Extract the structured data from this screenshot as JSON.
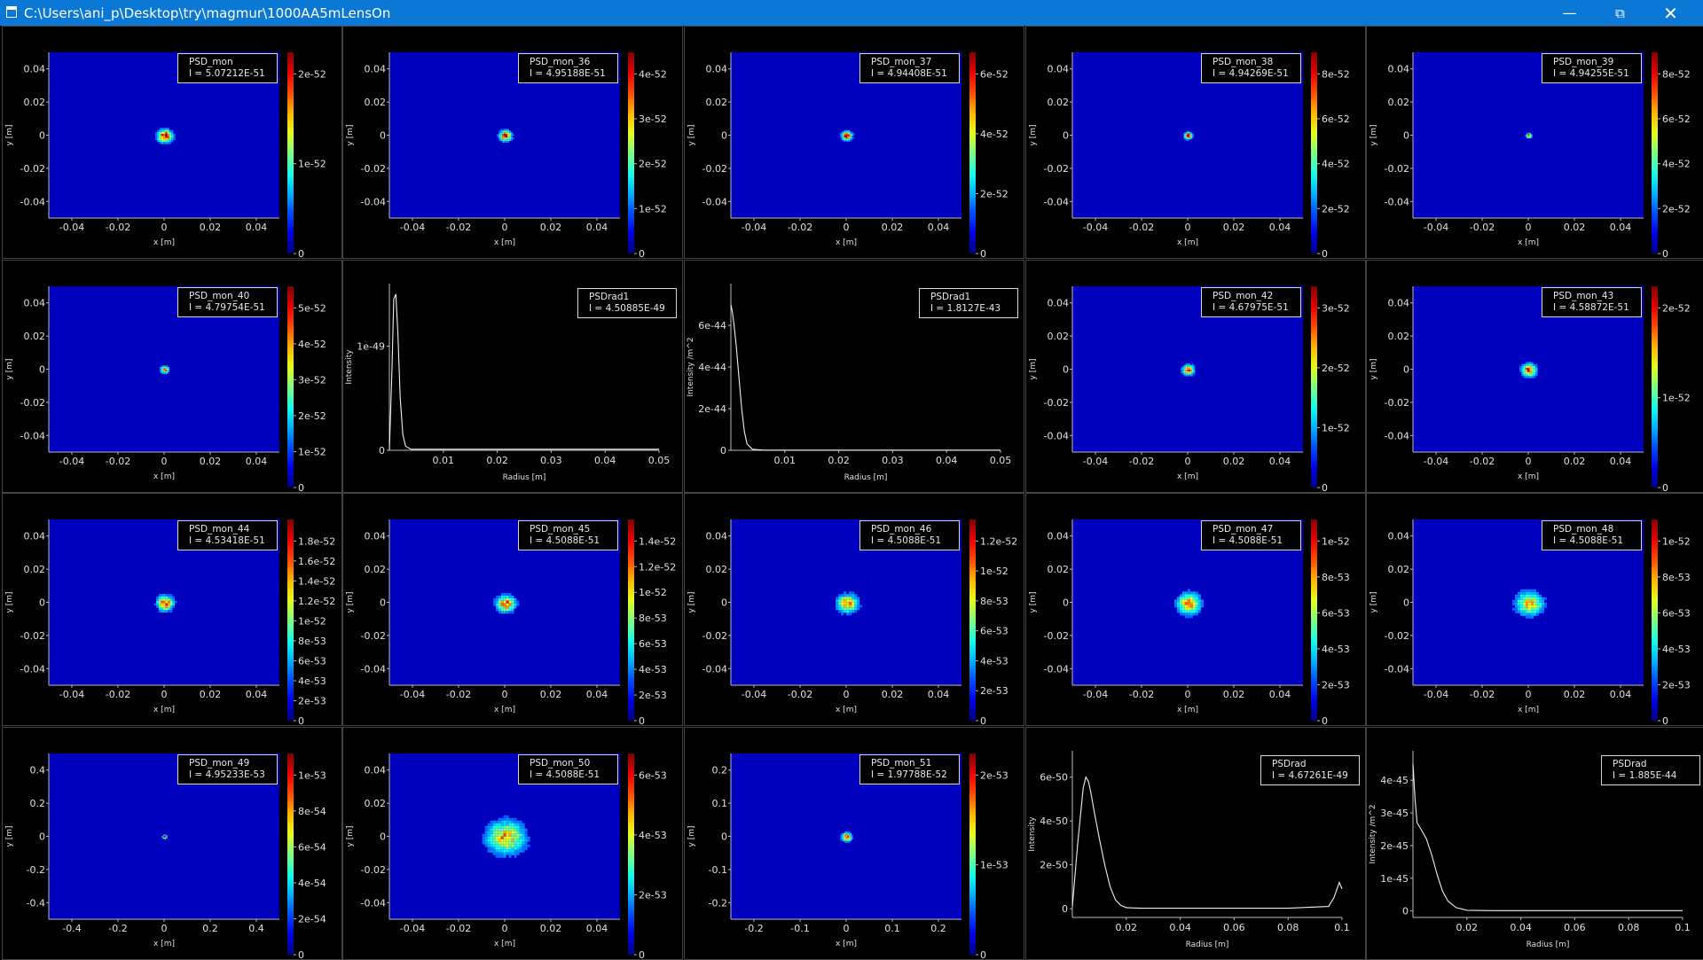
{
  "window": {
    "title": "C:\\Users\\ani_p\\Desktop\\try\\magmur\\1000AA5mLensOn",
    "minimize_icon": "minimize-icon",
    "maximize_icon": "restore-icon",
    "close_icon": "close-icon"
  },
  "panels": [
    {
      "type": "heatmap",
      "name": "PSD_mon",
      "intensity": "I = 5.07212E-51",
      "xlabel": "x [m]",
      "ylabel": "y [m]",
      "xticks": [
        "-0.04",
        "-0.02",
        "0",
        "0.02",
        "0.04"
      ],
      "yticks": [
        "0.04",
        "0.02",
        "0",
        "-0.02",
        "-0.04"
      ],
      "cbticks": [
        "0",
        "1e-52",
        "2e-52"
      ],
      "spot": {
        "x": 0,
        "y": 0,
        "r": 0.0035
      },
      "peak": 0.95
    },
    {
      "type": "heatmap",
      "name": "PSD_mon_36",
      "intensity": "I = 4.95188E-51",
      "xlabel": "x [m]",
      "ylabel": "y [m]",
      "xticks": [
        "-0.04",
        "-0.02",
        "0",
        "0.02",
        "0.04"
      ],
      "yticks": [
        "0.04",
        "0.02",
        "0",
        "-0.02",
        "-0.04"
      ],
      "cbticks": [
        "0",
        "1e-52",
        "2e-52",
        "3e-52",
        "4e-52"
      ],
      "spot": {
        "x": 0,
        "y": 0,
        "r": 0.003
      },
      "peak": 0.85
    },
    {
      "type": "heatmap",
      "name": "PSD_mon_37",
      "intensity": "I = 4.94408E-51",
      "xlabel": "x [m]",
      "ylabel": "y [m]",
      "xticks": [
        "-0.04",
        "-0.02",
        "0",
        "0.02",
        "0.04"
      ],
      "yticks": [
        "0.04",
        "0.02",
        "0",
        "-0.02",
        "-0.04"
      ],
      "cbticks": [
        "0",
        "2e-52",
        "4e-52",
        "6e-52"
      ],
      "spot": {
        "x": 0,
        "y": 0,
        "r": 0.0025
      },
      "peak": 0.92
    },
    {
      "type": "heatmap",
      "name": "PSD_mon_38",
      "intensity": "I = 4.94269E-51",
      "xlabel": "x [m]",
      "ylabel": "y [m]",
      "xticks": [
        "-0.04",
        "-0.02",
        "0",
        "0.02",
        "0.04"
      ],
      "yticks": [
        "0.04",
        "0.02",
        "0",
        "-0.02",
        "-0.04"
      ],
      "cbticks": [
        "0",
        "2e-52",
        "4e-52",
        "6e-52",
        "8e-52"
      ],
      "spot": {
        "x": 0,
        "y": 0,
        "r": 0.0018
      },
      "peak": 1.0
    },
    {
      "type": "heatmap",
      "name": "PSD_mon_39",
      "intensity": "I = 4.94255E-51",
      "xlabel": "x [m]",
      "ylabel": "y [m]",
      "xticks": [
        "-0.04",
        "-0.02",
        "0",
        "0.02",
        "0.04"
      ],
      "yticks": [
        "0.04",
        "0.02",
        "0",
        "-0.02",
        "-0.04"
      ],
      "cbticks": [
        "0",
        "2e-52",
        "4e-52",
        "6e-52",
        "8e-52"
      ],
      "spot": {
        "x": 0,
        "y": 0,
        "r": 0.0012
      },
      "peak": 1.0
    },
    {
      "type": "heatmap",
      "name": "PSD_mon_40",
      "intensity": "I = 4.79754E-51",
      "xlabel": "x [m]",
      "ylabel": "y [m]",
      "xticks": [
        "-0.04",
        "-0.02",
        "0",
        "0.02",
        "0.04"
      ],
      "yticks": [
        "0.04",
        "0.02",
        "0",
        "-0.02",
        "-0.04"
      ],
      "cbticks": [
        "0",
        "1e-52",
        "2e-52",
        "3e-52",
        "4e-52",
        "5e-52"
      ],
      "spot": {
        "x": 0,
        "y": 0,
        "r": 0.002
      },
      "peak": 0.75
    },
    {
      "type": "line",
      "name": "PSDrad1",
      "intensity": "I = 4.50885E-49",
      "xlabel": "Radius [m]",
      "ylabel": "Intensity",
      "xticks": [
        "0.01",
        "0.02",
        "0.03",
        "0.04",
        "0.05"
      ],
      "yticks": [
        "0",
        "1e-49"
      ],
      "chart_data": {
        "type": "line",
        "xlim": [
          0,
          0.05
        ],
        "ylim": [
          0,
          1.6e-49
        ],
        "x": [
          0,
          0.0005,
          0.0008,
          0.0012,
          0.0016,
          0.002,
          0.0025,
          0.003,
          0.004,
          0.006,
          0.01,
          0.02,
          0.03,
          0.04,
          0.05
        ],
        "y": [
          0,
          8e-50,
          1.45e-49,
          1.5e-49,
          1.1e-49,
          5e-50,
          1.5e-50,
          4e-51,
          1e-51,
          1e-51,
          1e-51,
          1e-51,
          1e-51,
          1e-51,
          1e-51
        ]
      }
    },
    {
      "type": "line",
      "name": "PSDrad1",
      "intensity": "I = 1.8127E-43",
      "xlabel": "Radius [m]",
      "ylabel": "Intensity /m^2",
      "xticks": [
        "0.01",
        "0.02",
        "0.03",
        "0.04",
        "0.05"
      ],
      "yticks": [
        "0",
        "2e-44",
        "4e-44",
        "6e-44"
      ],
      "chart_data": {
        "type": "line",
        "xlim": [
          0,
          0.05
        ],
        "ylim": [
          0,
          8e-44
        ],
        "x": [
          0,
          0.0003,
          0.0006,
          0.001,
          0.0015,
          0.002,
          0.0025,
          0.003,
          0.004,
          0.006,
          0.01,
          0.02,
          0.03,
          0.04,
          0.05
        ],
        "y": [
          7e-44,
          6.6e-44,
          6e-44,
          5e-44,
          3.5e-44,
          2e-44,
          9e-45,
          3e-45,
          5e-46,
          1e-46,
          1e-46,
          1e-46,
          1e-46,
          1e-46,
          1e-46
        ]
      }
    },
    {
      "type": "heatmap",
      "name": "PSD_mon_42",
      "intensity": "I = 4.67975E-51",
      "xlabel": "x [m]",
      "ylabel": "y [m]",
      "xticks": [
        "-0.04",
        "-0.02",
        "0",
        "0.02",
        "0.04"
      ],
      "yticks": [
        "0.04",
        "0.02",
        "0",
        "-0.02",
        "-0.04"
      ],
      "cbticks": [
        "0",
        "1e-52",
        "2e-52",
        "3e-52"
      ],
      "spot": {
        "x": 0,
        "y": 0,
        "r": 0.0028
      },
      "peak": 0.8
    },
    {
      "type": "heatmap",
      "name": "PSD_mon_43",
      "intensity": "I = 4.58872E-51",
      "xlabel": "x [m]",
      "ylabel": "y [m]",
      "xticks": [
        "-0.04",
        "-0.02",
        "0",
        "0.02",
        "0.04"
      ],
      "yticks": [
        "0.04",
        "0.02",
        "0",
        "-0.02",
        "-0.04"
      ],
      "cbticks": [
        "0",
        "1e-52",
        "2e-52"
      ],
      "spot": {
        "x": 0,
        "y": 0,
        "r": 0.0035
      },
      "peak": 0.8
    },
    {
      "type": "heatmap",
      "name": "PSD_mon_44",
      "intensity": "I = 4.53418E-51",
      "xlabel": "x [m]",
      "ylabel": "y [m]",
      "xticks": [
        "-0.04",
        "-0.02",
        "0",
        "0.02",
        "0.04"
      ],
      "yticks": [
        "0.04",
        "0.02",
        "0",
        "-0.02",
        "-0.04"
      ],
      "cbticks": [
        "0",
        "2e-53",
        "4e-53",
        "6e-53",
        "8e-53",
        "1e-52",
        "1.2e-52",
        "1.4e-52",
        "1.6e-52",
        "1.8e-52"
      ],
      "spot": {
        "x": 0,
        "y": 0,
        "r": 0.004
      },
      "peak": 0.8
    },
    {
      "type": "heatmap",
      "name": "PSD_mon_45",
      "intensity": "I = 4.5088E-51",
      "xlabel": "x [m]",
      "ylabel": "y [m]",
      "xticks": [
        "-0.04",
        "-0.02",
        "0",
        "0.02",
        "0.04"
      ],
      "yticks": [
        "0.04",
        "0.02",
        "0",
        "-0.02",
        "-0.04"
      ],
      "cbticks": [
        "0",
        "2e-53",
        "4e-53",
        "6e-53",
        "8e-53",
        "1e-52",
        "1.2e-52",
        "1.4e-52"
      ],
      "spot": {
        "x": 0,
        "y": 0,
        "r": 0.0045
      },
      "peak": 0.75
    },
    {
      "type": "heatmap",
      "name": "PSD_mon_46",
      "intensity": "I = 4.5088E-51",
      "xlabel": "x [m]",
      "ylabel": "y [m]",
      "xticks": [
        "-0.04",
        "-0.02",
        "0",
        "0.02",
        "0.04"
      ],
      "yticks": [
        "0.04",
        "0.02",
        "0",
        "-0.02",
        "-0.04"
      ],
      "cbticks": [
        "0",
        "2e-53",
        "4e-53",
        "6e-53",
        "8e-53",
        "1e-52",
        "1.2e-52"
      ],
      "spot": {
        "x": 0,
        "y": 0,
        "r": 0.005
      },
      "peak": 0.7
    },
    {
      "type": "heatmap",
      "name": "PSD_mon_47",
      "intensity": "I = 4.5088E-51",
      "xlabel": "x [m]",
      "ylabel": "y [m]",
      "xticks": [
        "-0.04",
        "-0.02",
        "0",
        "0.02",
        "0.04"
      ],
      "yticks": [
        "0.04",
        "0.02",
        "0",
        "-0.02",
        "-0.04"
      ],
      "cbticks": [
        "0",
        "2e-53",
        "4e-53",
        "6e-53",
        "8e-53",
        "1e-52"
      ],
      "spot": {
        "x": 0,
        "y": 0,
        "r": 0.0058
      },
      "peak": 0.65
    },
    {
      "type": "heatmap",
      "name": "PSD_mon_48",
      "intensity": "I = 4.5088E-51",
      "xlabel": "x [m]",
      "ylabel": "y [m]",
      "xticks": [
        "-0.04",
        "-0.02",
        "0",
        "0.02",
        "0.04"
      ],
      "yticks": [
        "0.04",
        "0.02",
        "0",
        "-0.02",
        "-0.04"
      ],
      "cbticks": [
        "0",
        "2e-53",
        "4e-53",
        "6e-53",
        "8e-53",
        "1e-52"
      ],
      "spot": {
        "x": 0,
        "y": 0,
        "r": 0.0065
      },
      "peak": 0.6
    },
    {
      "type": "heatmap",
      "name": "PSD_mon_49",
      "intensity": "I = 4.95233E-53",
      "xlabel": "x [m]",
      "ylabel": "y [m]",
      "xticks": [
        "-0.4",
        "-0.2",
        "0",
        "0.2",
        "0.4"
      ],
      "yticks": [
        "0.4",
        "0.2",
        "0",
        "-0.2",
        "-0.4"
      ],
      "cbticks": [
        "0",
        "2e-54",
        "4e-54",
        "6e-54",
        "8e-54",
        "1e-53"
      ],
      "spot": {
        "x": 0,
        "y": 0,
        "r": 0.01
      },
      "peak": 1.0
    },
    {
      "type": "heatmap",
      "name": "PSD_mon_50",
      "intensity": "I = 4.5088E-51",
      "xlabel": "x [m]",
      "ylabel": "y [m]",
      "xticks": [
        "-0.04",
        "-0.02",
        "0",
        "0.02",
        "0.04"
      ],
      "yticks": [
        "0.04",
        "0.02",
        "0",
        "-0.02",
        "-0.04"
      ],
      "cbticks": [
        "0",
        "2e-53",
        "4e-53",
        "6e-53"
      ],
      "spot": {
        "x": 0,
        "y": 0,
        "r": 0.009
      },
      "peak": 0.65
    },
    {
      "type": "heatmap",
      "name": "PSD_mon_51",
      "intensity": "I = 1.97788E-52",
      "xlabel": "x [m]",
      "ylabel": "y [m]",
      "xticks": [
        "-0.2",
        "-0.1",
        "0",
        "0.1",
        "0.2"
      ],
      "yticks": [
        "0.2",
        "0.1",
        "0",
        "-0.1",
        "-0.2"
      ],
      "cbticks": [
        "0",
        "1e-53",
        "2e-53"
      ],
      "spot": {
        "x": 0,
        "y": 0,
        "r": 0.012
      },
      "peak": 0.8
    },
    {
      "type": "line",
      "name": "PSDrad",
      "intensity": "I = 4.67261E-49",
      "xlabel": "Radius [m]",
      "ylabel": "Intensity",
      "xticks": [
        "0.02",
        "0.04",
        "0.06",
        "0.08",
        "0.1"
      ],
      "yticks": [
        "0",
        "2e-50",
        "4e-50",
        "6e-50"
      ],
      "chart_data": {
        "type": "line",
        "xlim": [
          0,
          0.1
        ],
        "ylim": [
          -4e-51,
          7.2e-50
        ],
        "x": [
          0,
          0.002,
          0.004,
          0.005,
          0.006,
          0.007,
          0.008,
          0.01,
          0.012,
          0.014,
          0.016,
          0.018,
          0.02,
          0.025,
          0.04,
          0.06,
          0.08,
          0.095,
          0.097,
          0.099,
          0.1
        ],
        "y": [
          1e-51,
          3e-50,
          5.5e-50,
          6e-50,
          5.8e-50,
          5.2e-50,
          4.5e-50,
          3.2e-50,
          2e-50,
          1e-50,
          4e-51,
          1.5e-51,
          5e-52,
          2e-52,
          2e-52,
          2e-52,
          2e-52,
          1e-51,
          5e-51,
          1.2e-50,
          9e-51
        ]
      }
    },
    {
      "type": "line",
      "name": "PSDrad",
      "intensity": "I = 1.885E-44",
      "xlabel": "Radius [m]",
      "ylabel": "Intensity /m^2",
      "xticks": [
        "0.02",
        "0.04",
        "0.06",
        "0.08",
        "0.1"
      ],
      "yticks": [
        "0",
        "1e-45",
        "2e-45",
        "3e-45",
        "4e-45"
      ],
      "chart_data": {
        "type": "line",
        "xlim": [
          0,
          0.1
        ],
        "ylim": [
          -2e-46,
          4.9e-45
        ],
        "x": [
          0,
          0.0008,
          0.0015,
          0.003,
          0.005,
          0.007,
          0.009,
          0.011,
          0.013,
          0.016,
          0.02,
          0.03,
          0.05,
          0.07,
          0.09,
          0.1
        ],
        "y": [
          4.5e-45,
          3.4e-45,
          2.7e-45,
          2.5e-45,
          2.2e-45,
          1.7e-45,
          1.1e-45,
          6e-46,
          3e-46,
          1e-46,
          2e-47,
          1e-47,
          1e-47,
          1e-47,
          1e-47,
          1e-47
        ]
      }
    }
  ]
}
